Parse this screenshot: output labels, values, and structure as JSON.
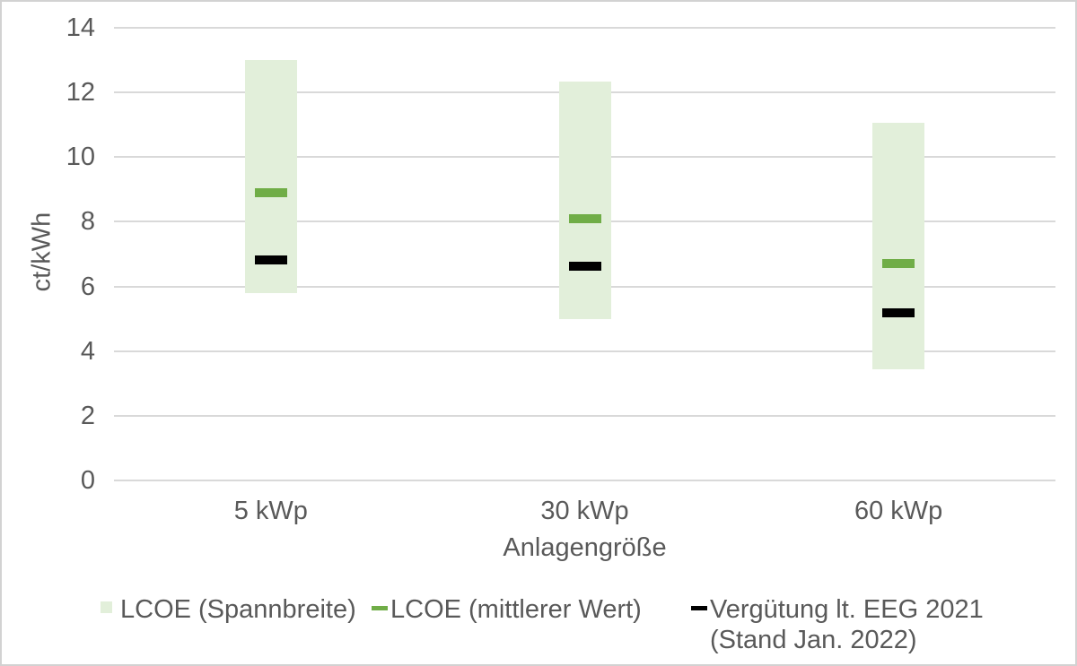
{
  "chart_data": {
    "type": "bar",
    "subtype": "floating-range-bars-with-dash-markers",
    "title": "",
    "ylabel": "ct/kWh",
    "xlabel": "Anlagengröße",
    "ylim": [
      0,
      14
    ],
    "yticks": [
      0,
      2,
      4,
      6,
      8,
      10,
      12,
      14
    ],
    "grid": "horizontal",
    "legend_position": "bottom",
    "categories": [
      "5 kWp",
      "30 kWp",
      "60 kWp"
    ],
    "series": [
      {
        "name": "LCOE (Spannbreite)",
        "type": "range",
        "color": "#e2efda",
        "low": [
          5.8,
          5.0,
          3.45
        ],
        "high": [
          13.0,
          12.35,
          11.05
        ]
      },
      {
        "name": "LCOE (mittlerer Wert)",
        "type": "dash-marker",
        "color": "#70ad47",
        "values": [
          8.9,
          8.1,
          6.7
        ]
      },
      {
        "name": "Vergütung lt. EEG 2021 (Stand Jan. 2022)",
        "type": "dash-marker",
        "color": "#000000",
        "values": [
          6.83,
          6.63,
          5.19
        ]
      }
    ],
    "legend": {
      "items": [
        {
          "marker": "box",
          "color": "#e2efda",
          "lines": [
            "LCOE (Spannbreite)"
          ]
        },
        {
          "marker": "dash",
          "color": "#70ad47",
          "lines": [
            "LCOE (mittlerer Wert)"
          ]
        },
        {
          "marker": "dash",
          "color": "#000000",
          "lines": [
            "Vergütung lt. EEG 2021",
            "(Stand Jan. 2022)"
          ]
        }
      ]
    }
  }
}
